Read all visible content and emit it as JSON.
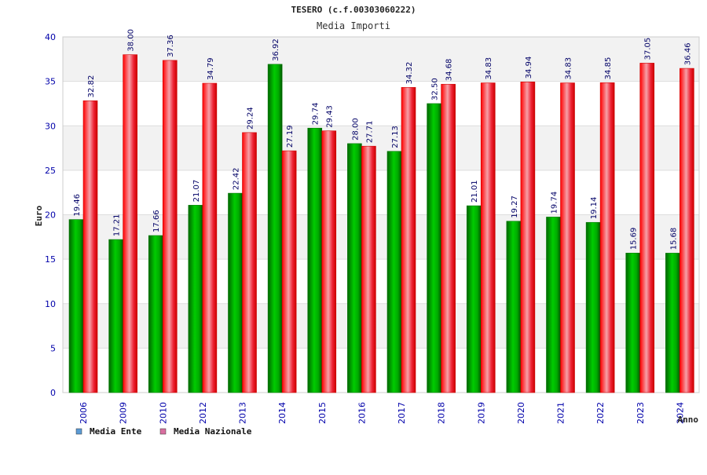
{
  "chart_data": {
    "type": "bar",
    "title": "TESERO (c.f.00303060222)",
    "subtitle": "Media Importi",
    "xlabel": "Anno",
    "ylabel": "Euro",
    "ylim": [
      0,
      40
    ],
    "yticks": [
      0,
      5,
      10,
      15,
      20,
      25,
      30,
      35,
      40
    ],
    "ytick_labels": [
      "0",
      "5",
      "10",
      "15",
      "20",
      "25",
      "30",
      "35",
      "40"
    ],
    "categories": [
      "2006",
      "2009",
      "2010",
      "2012",
      "2013",
      "2014",
      "2015",
      "2016",
      "2017",
      "2018",
      "2019",
      "2020",
      "2021",
      "2022",
      "2023",
      "2024"
    ],
    "series": [
      {
        "name": "Media Ente",
        "color": "#00aa00",
        "values": [
          19.46,
          17.21,
          17.66,
          21.07,
          22.42,
          36.92,
          29.74,
          28.0,
          27.13,
          32.5,
          21.01,
          19.27,
          19.74,
          19.14,
          15.69,
          15.68
        ],
        "labels": [
          "19.46",
          "17.21",
          "17.66",
          "21.07",
          "22.42",
          "36.92",
          "29.74",
          "28.00",
          "27.13",
          "32.50",
          "21.01",
          "19.27",
          "19.74",
          "19.14",
          "15.69",
          "15.68"
        ]
      },
      {
        "name": "Media Nazionale",
        "color": "#ee1122",
        "values": [
          32.82,
          38.0,
          37.36,
          34.79,
          29.24,
          27.19,
          29.43,
          27.71,
          34.32,
          34.68,
          34.83,
          34.94,
          34.83,
          34.85,
          37.05,
          36.46
        ],
        "labels": [
          "32.82",
          "38.00",
          "37.36",
          "34.79",
          "29.24",
          "27.19",
          "29.43",
          "27.71",
          "34.32",
          "34.68",
          "34.83",
          "34.94",
          "34.83",
          "34.85",
          "37.05",
          "36.46"
        ]
      }
    ],
    "legend": {
      "position": "bottom-left",
      "items": [
        {
          "label": "Media Ente",
          "color": "#5b9bd5"
        },
        {
          "label": "Media Nazionale",
          "color": "#d96fa0"
        }
      ]
    },
    "grid": true
  }
}
